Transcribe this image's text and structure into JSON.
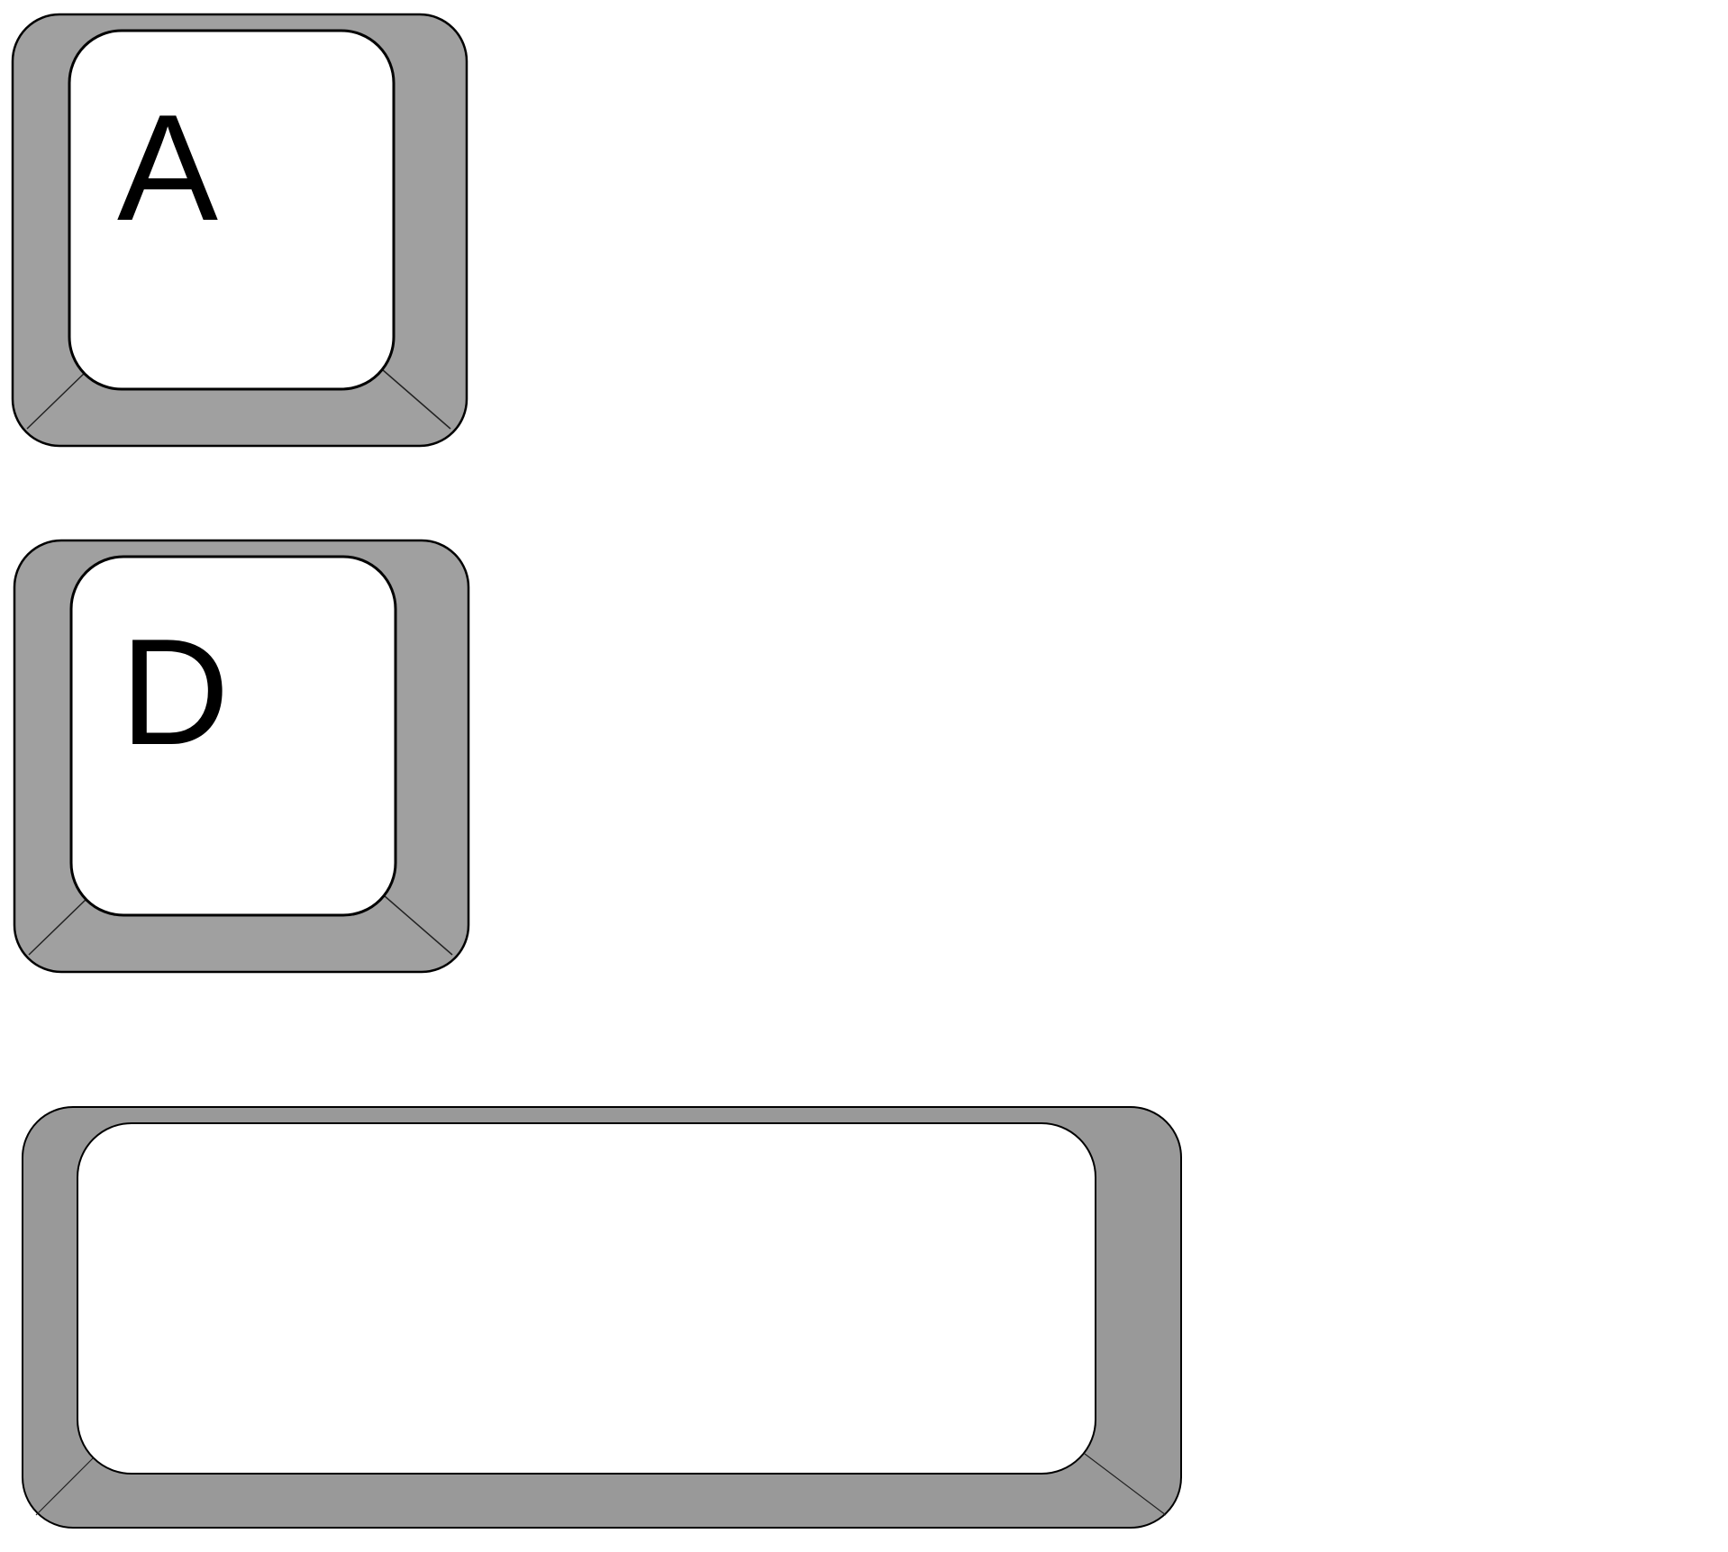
{
  "colors": {
    "background": "#ffffff",
    "key_skirt": "#a0a0a0",
    "key_skirt_dark": "#999999",
    "key_top": "#ffffff",
    "outline": "#000000",
    "label": "#000000"
  },
  "keys": [
    {
      "label": "A"
    },
    {
      "label": "D"
    },
    {
      "label": ""
    }
  ]
}
